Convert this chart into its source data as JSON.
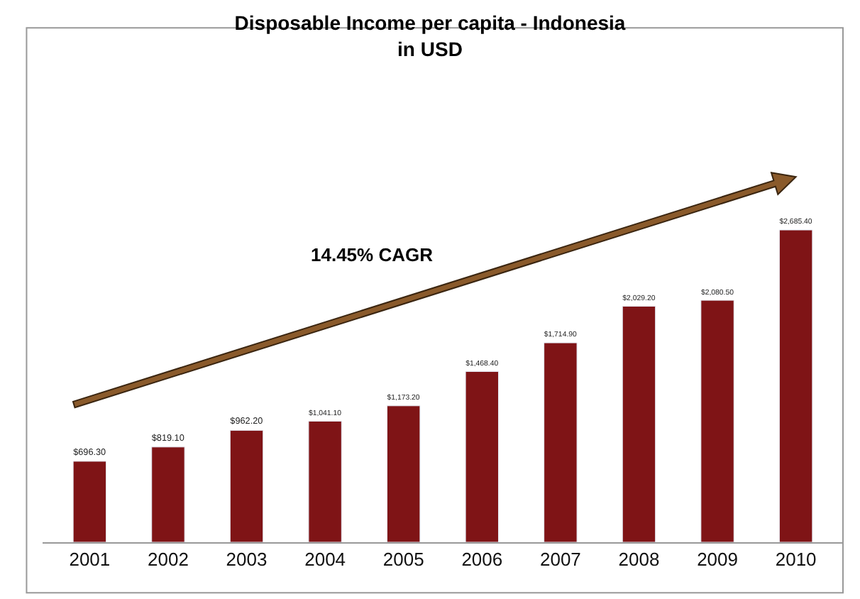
{
  "chart_data": {
    "type": "bar",
    "title": "Disposable Income per capita - Indonesia",
    "subtitle": "in USD",
    "categories": [
      "2001",
      "2002",
      "2003",
      "2004",
      "2005",
      "2006",
      "2007",
      "2008",
      "2009",
      "2010"
    ],
    "values": [
      696.3,
      819.1,
      962.2,
      1041.1,
      1173.2,
      1468.4,
      1714.9,
      2029.2,
      2080.5,
      2685.4
    ],
    "value_labels": [
      "$696.30",
      "$819.10",
      "$962.20",
      "$1,041.10",
      "$1,173.20",
      "$1,468.40",
      "$1,714.90",
      "$2,029.20",
      "$2,080.50",
      "$2,685.40"
    ],
    "color": "#7f1416",
    "tick_labels": "x",
    "legend": false,
    "annotations": [
      "14.45% CAGR"
    ]
  }
}
